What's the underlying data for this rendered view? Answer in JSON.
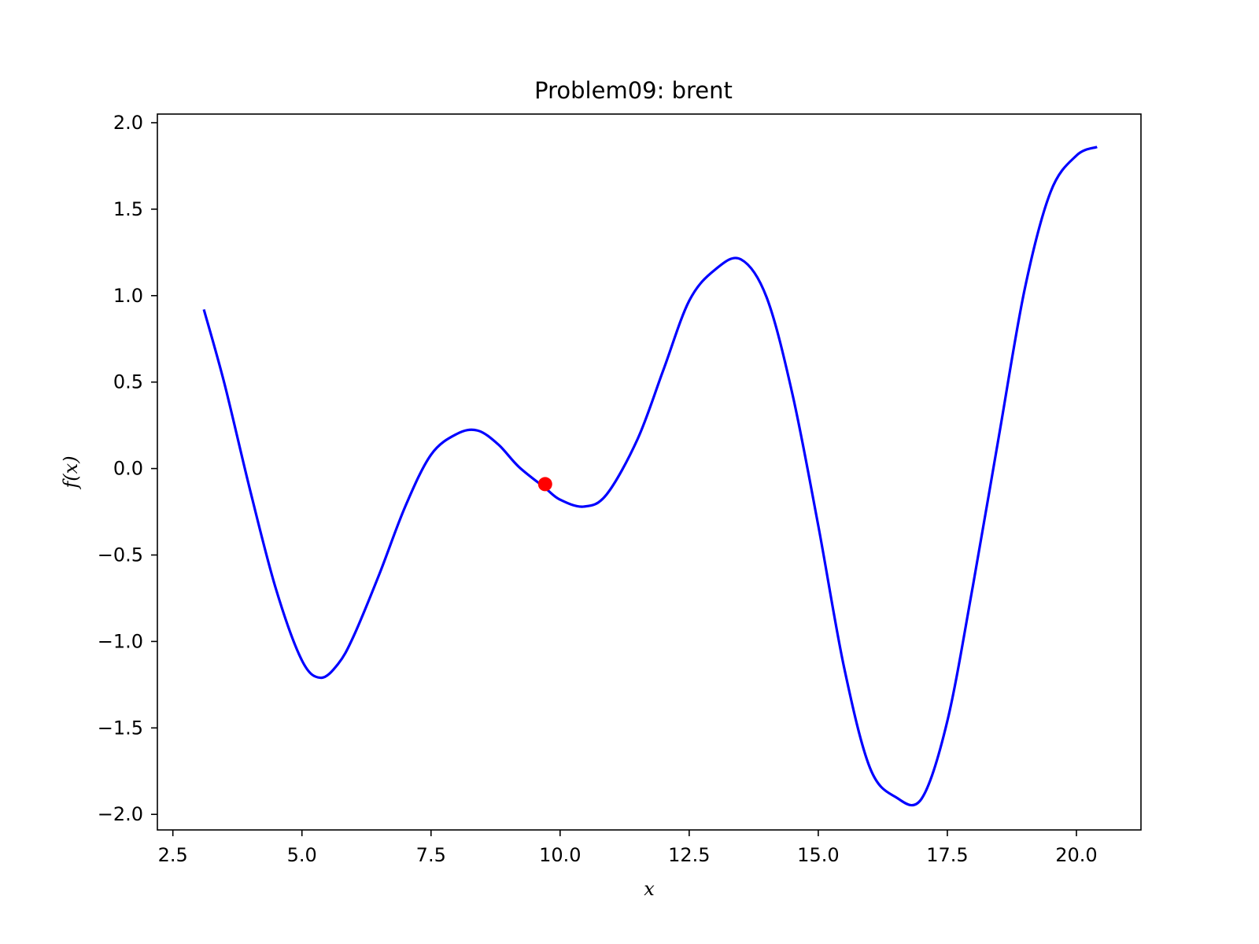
{
  "chart_data": {
    "type": "line",
    "title": "Problem09: brent",
    "xlabel": "x",
    "ylabel": "f(x)",
    "xlim": [
      2.2,
      21.25
    ],
    "ylim": [
      -2.09,
      2.05
    ],
    "x_ticks": [
      2.5,
      5.0,
      7.5,
      10.0,
      12.5,
      15.0,
      17.5,
      20.0
    ],
    "x_tick_labels": [
      "2.5",
      "5.0",
      "7.5",
      "10.0",
      "12.5",
      "15.0",
      "17.5",
      "20.0"
    ],
    "y_ticks": [
      2.0,
      1.5,
      1.0,
      0.5,
      0.0,
      -0.5,
      -1.0,
      -1.5,
      -2.0
    ],
    "y_tick_labels": [
      "2.0",
      "1.5",
      "1.0",
      "0.5",
      "0.0",
      "−0.5",
      "−1.0",
      "−1.5",
      "−2.0"
    ],
    "grid": false,
    "series": [
      {
        "color": "#0000ff",
        "x": [
          3.1,
          3.5,
          4.0,
          4.5,
          5.0,
          5.36,
          5.7,
          6.0,
          6.5,
          7.0,
          7.5,
          8.0,
          8.4,
          8.8,
          9.2,
          9.7,
          10.0,
          10.46,
          10.9,
          11.5,
          12.0,
          12.5,
          13.0,
          13.5,
          14.0,
          14.5,
          15.0,
          15.5,
          16.0,
          16.5,
          17.0,
          17.5,
          18.0,
          18.5,
          19.0,
          19.5,
          20.0,
          20.4
        ],
        "y": [
          0.92,
          0.49,
          -0.13,
          -0.7,
          -1.11,
          -1.21,
          -1.13,
          -0.97,
          -0.61,
          -0.22,
          0.08,
          0.2,
          0.22,
          0.14,
          0.01,
          -0.11,
          -0.18,
          -0.22,
          -0.15,
          0.17,
          0.57,
          0.97,
          1.15,
          1.21,
          0.99,
          0.43,
          -0.33,
          -1.15,
          -1.73,
          -1.9,
          -1.91,
          -1.46,
          -0.67,
          0.19,
          1.04,
          1.6,
          1.81,
          1.86
        ]
      }
    ],
    "highlight_point": {
      "x": 9.71,
      "y": -0.09,
      "color": "#ff0000"
    }
  }
}
